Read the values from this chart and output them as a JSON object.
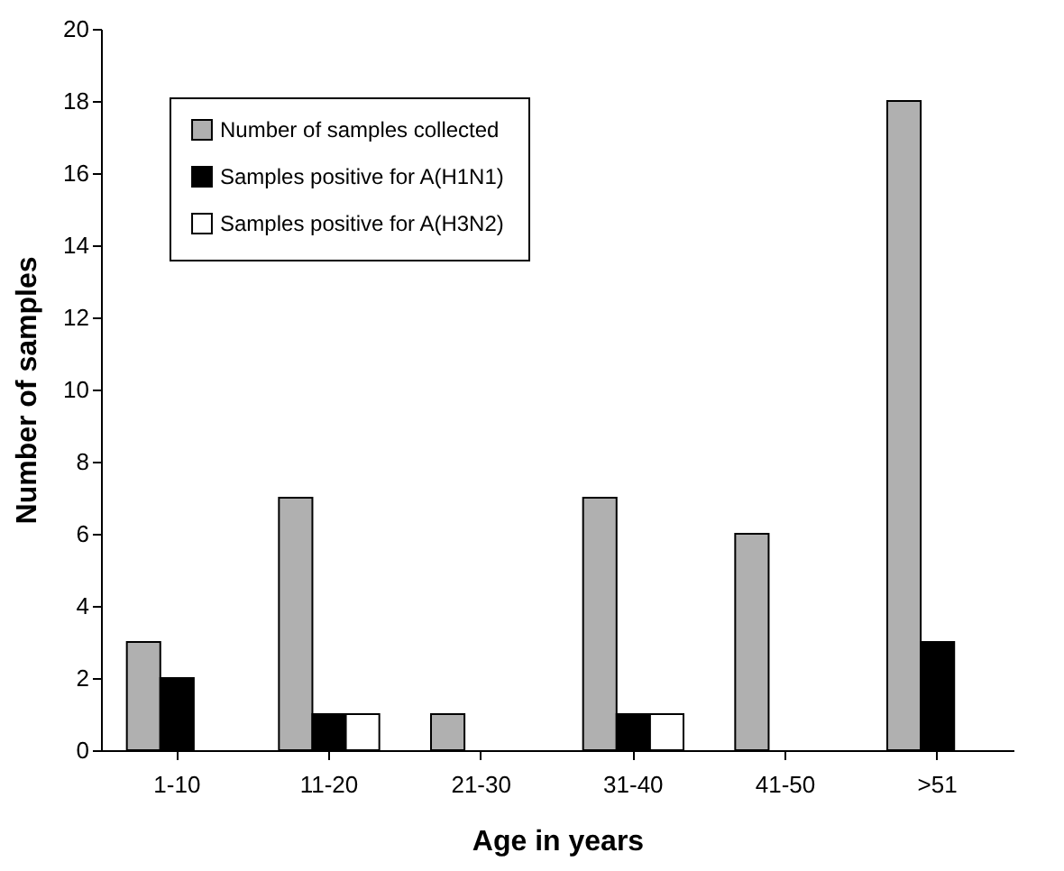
{
  "chart_data": {
    "type": "bar",
    "xlabel": "Age in years",
    "ylabel": "Number of samples",
    "categories": [
      "1-10",
      "11-20",
      "21-30",
      "31-40",
      "41-50",
      ">51"
    ],
    "series": [
      {
        "name": "Number of samples collected",
        "color": "#b0b0b0",
        "values": [
          3,
          7,
          1,
          7,
          6,
          18
        ]
      },
      {
        "name": "Samples positive for A(H1N1)",
        "color": "#000000",
        "values": [
          2,
          1,
          null,
          1,
          null,
          3
        ]
      },
      {
        "name": "Samples positive for A(H3N2)",
        "color": "#ffffff",
        "values": [
          null,
          1,
          null,
          1,
          null,
          null
        ]
      }
    ],
    "ylim": [
      0,
      20
    ],
    "yticks": [
      0,
      2,
      4,
      6,
      8,
      10,
      12,
      14,
      16,
      18,
      20
    ],
    "grid": false,
    "legend": "top left"
  }
}
